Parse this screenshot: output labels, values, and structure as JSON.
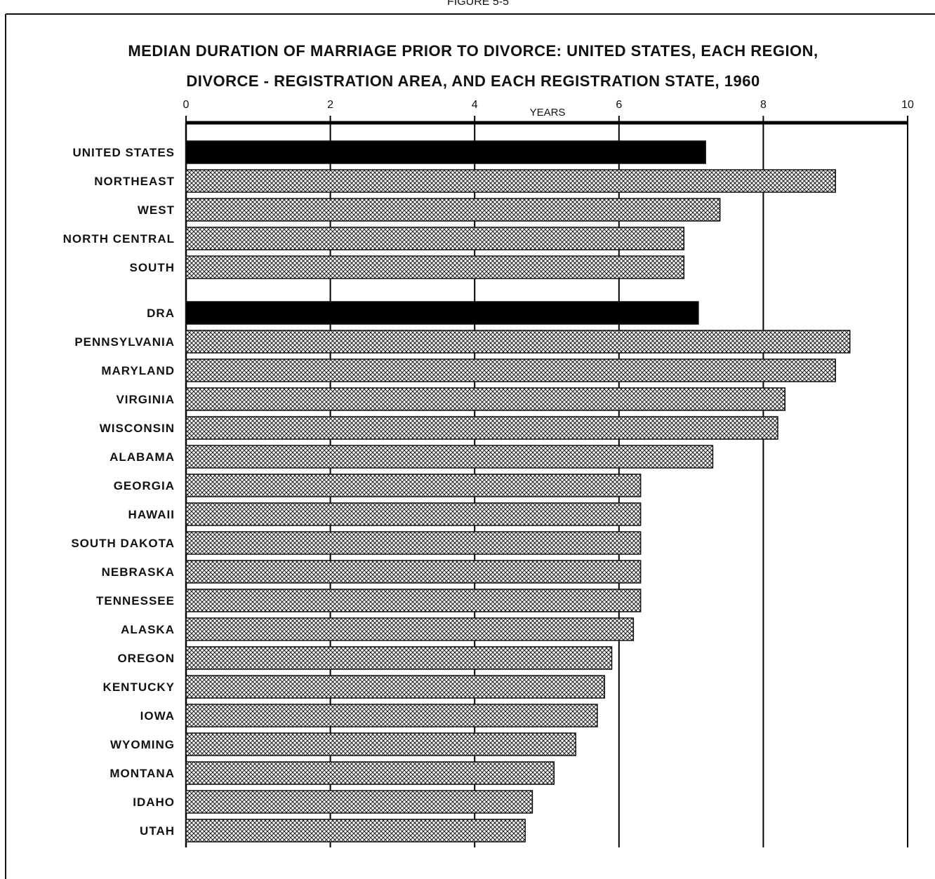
{
  "chart_data": {
    "type": "bar",
    "orientation": "horizontal",
    "header_fragment": "FIGURE 5-5",
    "title": "MEDIAN DURATION OF MARRIAGE PRIOR TO DIVORCE: UNITED STATES, EACH REGION,",
    "subtitle": "DIVORCE - REGISTRATION AREA, AND EACH REGISTRATION STATE, 1960",
    "xlabel": "YEARS",
    "xlim": [
      0,
      10
    ],
    "xticks": [
      "0",
      "2",
      "4",
      "6",
      "8",
      "10"
    ],
    "grid": "vertical lines at each major tick",
    "categories": [
      "UNITED STATES",
      "NORTHEAST",
      "WEST",
      "NORTH CENTRAL",
      "SOUTH",
      "DRA",
      "PENNSYLVANIA",
      "MARYLAND",
      "VIRGINIA",
      "WISCONSIN",
      "ALABAMA",
      "GEORGIA",
      "HAWAII",
      "SOUTH DAKOTA",
      "NEBRASKA",
      "TENNESSEE",
      "ALASKA",
      "OREGON",
      "KENTUCKY",
      "IOWA",
      "WYOMING",
      "MONTANA",
      "IDAHO",
      "UTAH"
    ],
    "values": [
      7.2,
      9.0,
      7.4,
      6.9,
      6.9,
      7.1,
      9.2,
      9.0,
      8.3,
      8.2,
      7.3,
      6.3,
      6.3,
      6.3,
      6.3,
      6.3,
      6.2,
      5.9,
      5.8,
      5.7,
      5.4,
      5.1,
      4.8,
      4.7
    ],
    "bar_style": [
      "solid",
      "hatched",
      "hatched",
      "hatched",
      "hatched",
      "solid",
      "hatched",
      "hatched",
      "hatched",
      "hatched",
      "hatched",
      "hatched",
      "hatched",
      "hatched",
      "hatched",
      "hatched",
      "hatched",
      "hatched",
      "hatched",
      "hatched",
      "hatched",
      "hatched",
      "hatched",
      "hatched"
    ],
    "colors": {
      "solid": "#000000",
      "hatch": "#222222",
      "background": "#ffffff"
    }
  }
}
